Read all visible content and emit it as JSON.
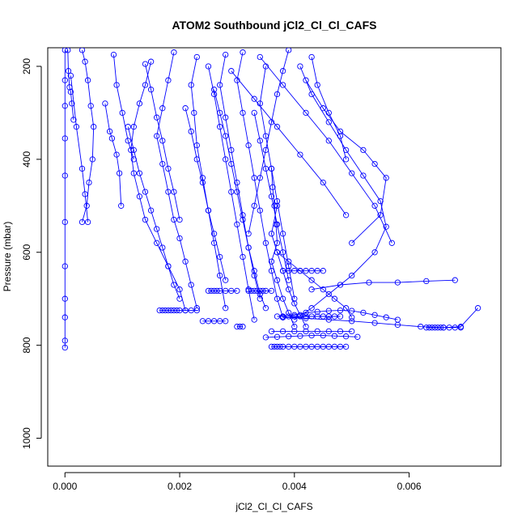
{
  "chart_data": {
    "type": "line",
    "title": "ATOM2 Southbound jCl2_Cl_Cl_CAFS",
    "xlabel": "jCl2_Cl_Cl_CAFS",
    "ylabel": "Pressure (mbar)",
    "xlim": [
      -0.0003,
      0.0076
    ],
    "ylim": [
      1060,
      160
    ],
    "y_reversed": true,
    "grid": false,
    "x_ticks": [
      0,
      0.002,
      0.004,
      0.006
    ],
    "x_tick_labels": [
      "0.000",
      "0.002",
      "0.004",
      "0.006"
    ],
    "y_ticks": [
      200,
      400,
      600,
      800,
      1000
    ],
    "y_tick_labels": [
      "200",
      "400",
      "600",
      "800",
      "1000"
    ],
    "color": "#0000ff",
    "series": [
      {
        "x": [
          0.0,
          0.0,
          0.0,
          0.0,
          0.0,
          0.0,
          0.0,
          0.0,
          0.0,
          0.0,
          0.0
        ],
        "y": [
          165,
          230,
          285,
          355,
          435,
          535,
          630,
          700,
          740,
          790,
          805
        ]
      },
      {
        "x": [
          5e-05,
          6e-05,
          8e-05,
          0.0001,
          0.00012,
          0.00015
        ],
        "y": [
          165,
          210,
          245,
          255,
          280,
          315
        ]
      },
      {
        "x": [
          0.0003,
          0.00035,
          0.0004,
          0.00045,
          0.0005,
          0.00048,
          0.00042,
          0.00038,
          0.0003
        ],
        "y": [
          165,
          190,
          230,
          285,
          330,
          400,
          450,
          500,
          535
        ]
      },
      {
        "x": [
          0.0001,
          0.0002,
          0.0003,
          0.00035,
          0.0004
        ],
        "y": [
          220,
          330,
          420,
          475,
          535
        ]
      },
      {
        "x": [
          0.00085,
          0.0009,
          0.001,
          0.0011,
          0.0012
        ],
        "y": [
          175,
          240,
          300,
          360,
          400
        ]
      },
      {
        "x": [
          0.0007,
          0.00078,
          0.00082,
          0.0009,
          0.00095,
          0.00098
        ],
        "y": [
          280,
          340,
          355,
          390,
          430,
          500
        ]
      },
      {
        "x": [
          0.0015,
          0.0014,
          0.0013,
          0.0012,
          0.00115,
          0.0012,
          0.0013,
          0.0014,
          0.0016,
          0.0018,
          0.002,
          0.0021
        ],
        "y": [
          190,
          240,
          280,
          330,
          380,
          430,
          480,
          530,
          580,
          630,
          680,
          725
        ]
      },
      {
        "x": [
          0.00165,
          0.0017,
          0.00175,
          0.0018,
          0.00185,
          0.0019,
          0.00195,
          0.002,
          0.0021,
          0.0022,
          0.0023
        ],
        "y": [
          725,
          725,
          725,
          725,
          725,
          725,
          725,
          725,
          725,
          725,
          725
        ]
      },
      {
        "x": [
          0.0011,
          0.0012,
          0.0013,
          0.0014,
          0.0015,
          0.0016,
          0.0017,
          0.0018,
          0.0019,
          0.002
        ],
        "y": [
          330,
          380,
          430,
          470,
          510,
          550,
          590,
          630,
          670,
          700
        ]
      },
      {
        "x": [
          0.0019,
          0.0018,
          0.0017,
          0.0016,
          0.0017,
          0.0018,
          0.0019,
          0.002,
          0.0021,
          0.0022,
          0.0023
        ],
        "y": [
          170,
          230,
          290,
          350,
          410,
          470,
          530,
          570,
          620,
          670,
          720
        ]
      },
      {
        "x": [
          0.0023,
          0.0022,
          0.00225,
          0.0023,
          0.0024,
          0.0025,
          0.0026,
          0.0027,
          0.0028
        ],
        "y": [
          180,
          240,
          300,
          370,
          440,
          510,
          580,
          650,
          720
        ]
      },
      {
        "x": [
          0.0025,
          0.0026,
          0.0027,
          0.0028,
          0.0029,
          0.003,
          0.0031,
          0.0032,
          0.0033
        ],
        "y": [
          200,
          260,
          330,
          400,
          470,
          540,
          610,
          680,
          745
        ]
      },
      {
        "x": [
          0.0028,
          0.0027,
          0.0028,
          0.0029,
          0.003,
          0.0031,
          0.0032,
          0.0033,
          0.0034,
          0.0035
        ],
        "y": [
          175,
          240,
          310,
          380,
          450,
          520,
          590,
          640,
          690,
          720
        ]
      },
      {
        "x": [
          0.0031,
          0.003,
          0.0031,
          0.0032,
          0.0033,
          0.0034,
          0.0035,
          0.0036,
          0.0037,
          0.0038
        ],
        "y": [
          170,
          230,
          300,
          370,
          440,
          510,
          580,
          640,
          700,
          740
        ]
      },
      {
        "x": [
          0.0035,
          0.0034,
          0.0035,
          0.0036,
          0.0037,
          0.0038,
          0.0039,
          0.004
        ],
        "y": [
          200,
          280,
          350,
          420,
          490,
          560,
          630,
          700
        ]
      },
      {
        "x": [
          0.0036,
          0.00362,
          0.00365,
          0.00368,
          0.0037,
          0.0036,
          0.0037,
          0.0038,
          0.0039,
          0.004
        ],
        "y": [
          420,
          460,
          500,
          540,
          580,
          620,
          660,
          700,
          730,
          760
        ]
      },
      {
        "x": [
          0.0041,
          0.0043,
          0.0046,
          0.0049,
          0.0052,
          0.0055,
          0.0056,
          0.0054,
          0.005,
          0.0046,
          0.0043,
          0.004
        ],
        "y": [
          200,
          260,
          320,
          380,
          435,
          490,
          545,
          600,
          650,
          690,
          720,
          745
        ]
      },
      {
        "x": [
          0.0043,
          0.0044,
          0.0046,
          0.0048,
          0.0049
        ],
        "y": [
          180,
          240,
          300,
          350,
          400
        ]
      },
      {
        "x": [
          0.0038,
          0.004,
          0.0042,
          0.0044,
          0.0046,
          0.0048,
          0.005,
          0.0052,
          0.0054,
          0.0056,
          0.0058
        ],
        "y": [
          740,
          735,
          730,
          728,
          726,
          725,
          726,
          730,
          735,
          740,
          745
        ]
      },
      {
        "x": [
          0.0038,
          0.0042,
          0.0046,
          0.005,
          0.0054,
          0.0058,
          0.0062,
          0.0066,
          0.0069,
          0.0072
        ],
        "y": [
          740,
          742,
          745,
          748,
          752,
          756,
          760,
          762,
          760,
          720
        ]
      },
      {
        "x": [
          0.0043,
          0.0048,
          0.0053,
          0.0058,
          0.0063,
          0.0068
        ],
        "y": [
          680,
          670,
          665,
          665,
          662,
          660
        ]
      },
      {
        "x": [
          0.0063,
          0.00635,
          0.0064,
          0.00645,
          0.0065,
          0.00655,
          0.0066,
          0.0067,
          0.0068,
          0.0069
        ],
        "y": [
          762,
          762,
          762,
          762,
          762,
          762,
          762,
          762,
          762,
          762
        ]
      },
      {
        "x": [
          0.0036,
          0.00365,
          0.0037,
          0.00375,
          0.0038,
          0.0039,
          0.004,
          0.0041,
          0.0042,
          0.0043,
          0.0044,
          0.0045,
          0.0046,
          0.0047,
          0.0048,
          0.0049
        ],
        "y": [
          803,
          803,
          803,
          803,
          803,
          803,
          803,
          803,
          803,
          803,
          803,
          803,
          803,
          803,
          803,
          803
        ]
      },
      {
        "x": [
          0.0035,
          0.0037,
          0.0039,
          0.0041,
          0.0043,
          0.0045,
          0.0047,
          0.0049,
          0.0051
        ],
        "y": [
          783,
          782,
          781,
          780,
          779,
          779,
          780,
          781,
          782
        ]
      },
      {
        "x": [
          0.0036,
          0.0038,
          0.004,
          0.0042,
          0.0044,
          0.0046,
          0.0048,
          0.005
        ],
        "y": [
          770,
          770,
          770,
          770,
          770,
          770,
          770,
          770
        ]
      },
      {
        "x": [
          0.0032,
          0.00325,
          0.0033,
          0.00335,
          0.0034,
          0.00345,
          0.0035,
          0.0036
        ],
        "y": [
          683,
          683,
          683,
          683,
          683,
          683,
          683,
          683
        ]
      },
      {
        "x": [
          0.0038,
          0.0039,
          0.004,
          0.0041,
          0.0042,
          0.0043,
          0.0044,
          0.0045
        ],
        "y": [
          640,
          640,
          640,
          640,
          640,
          640,
          640,
          640
        ]
      },
      {
        "x": [
          0.0025,
          0.00255,
          0.0026,
          0.00265,
          0.0027,
          0.0028,
          0.0029,
          0.003
        ],
        "y": [
          683,
          683,
          683,
          683,
          683,
          683,
          683,
          683
        ]
      },
      {
        "x": [
          0.0024,
          0.0025,
          0.0026,
          0.0027,
          0.0028
        ],
        "y": [
          748,
          748,
          748,
          748,
          748
        ]
      },
      {
        "x": [
          0.003,
          0.00305,
          0.0031
        ],
        "y": [
          760,
          760,
          760
        ]
      },
      {
        "x": [
          0.0037,
          0.0038,
          0.0039,
          0.004,
          0.0041,
          0.0042,
          0.0043,
          0.0044,
          0.0045,
          0.0046,
          0.0047,
          0.0048
        ],
        "y": [
          738,
          738,
          738,
          738,
          738,
          738,
          738,
          738,
          738,
          738,
          738,
          738
        ]
      },
      {
        "x": [
          0.0037,
          0.0036,
          0.0037,
          0.0038,
          0.0039,
          0.004,
          0.0041,
          0.0042
        ],
        "y": [
          500,
          560,
          600,
          640,
          680,
          710,
          735,
          760
        ]
      },
      {
        "x": [
          0.0039,
          0.0038,
          0.0037,
          0.0036,
          0.0035,
          0.0034,
          0.0033,
          0.0032
        ],
        "y": [
          165,
          210,
          260,
          320,
          380,
          440,
          500,
          560
        ]
      },
      {
        "x": [
          0.0042,
          0.0045,
          0.0048,
          0.0052,
          0.0054,
          0.0056,
          0.0055,
          0.005
        ],
        "y": [
          230,
          290,
          340,
          380,
          410,
          440,
          520,
          580
        ]
      },
      {
        "x": [
          0.0034,
          0.0038,
          0.0042,
          0.0046,
          0.005,
          0.0054,
          0.0057
        ],
        "y": [
          180,
          240,
          300,
          360,
          430,
          500,
          580
        ]
      },
      {
        "x": [
          0.0029,
          0.0033,
          0.0037,
          0.0041,
          0.0045,
          0.0049
        ],
        "y": [
          210,
          270,
          330,
          390,
          450,
          520
        ]
      },
      {
        "x": [
          0.0014,
          0.0015,
          0.0016,
          0.0017,
          0.0018,
          0.0019,
          0.002
        ],
        "y": [
          195,
          250,
          310,
          360,
          420,
          470,
          530
        ]
      },
      {
        "x": [
          0.0021,
          0.0022,
          0.0023,
          0.0024,
          0.0025,
          0.0026,
          0.0027,
          0.0028
        ],
        "y": [
          290,
          340,
          400,
          450,
          510,
          560,
          610,
          660
        ]
      },
      {
        "x": [
          0.0026,
          0.0027,
          0.0028,
          0.0029,
          0.003,
          0.0031,
          0.0032,
          0.0033,
          0.0034
        ],
        "y": [
          250,
          300,
          350,
          410,
          470,
          530,
          590,
          650,
          700
        ]
      },
      {
        "x": [
          0.0033,
          0.0034,
          0.0035,
          0.0036,
          0.0037,
          0.0038,
          0.0039
        ],
        "y": [
          300,
          360,
          420,
          480,
          540,
          600,
          660
        ]
      },
      {
        "x": [
          0.0037,
          0.0039,
          0.0041,
          0.0043,
          0.0045,
          0.0047,
          0.0049,
          0.005
        ],
        "y": [
          600,
          620,
          640,
          660,
          680,
          700,
          720,
          740
        ]
      }
    ]
  }
}
